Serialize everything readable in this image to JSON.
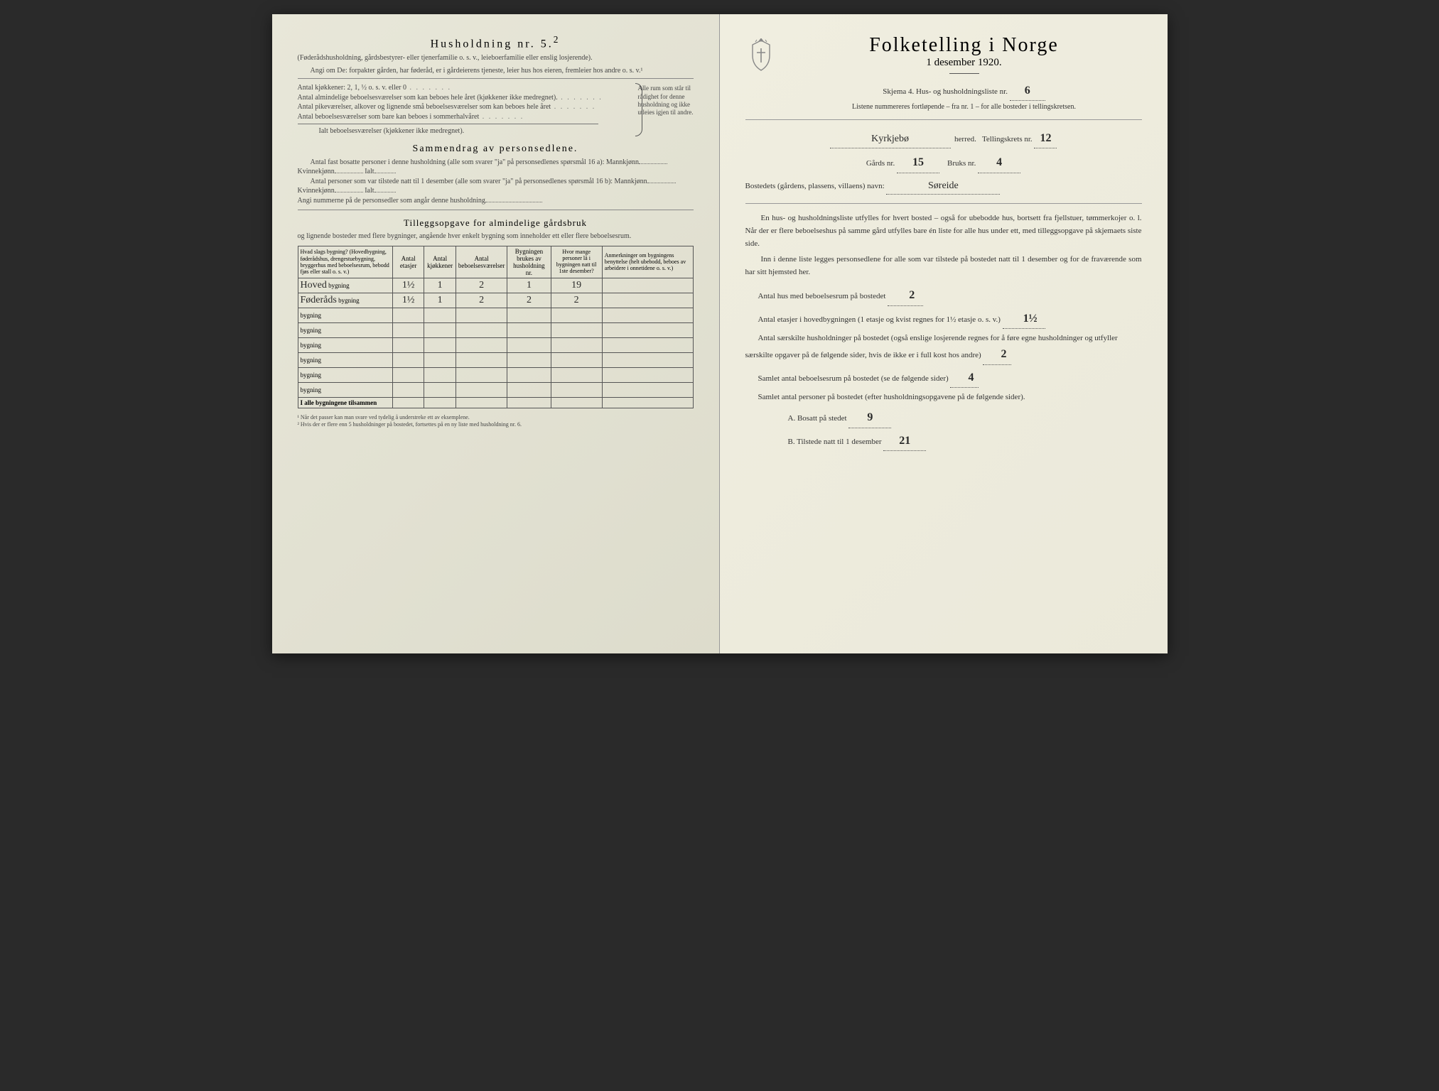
{
  "left": {
    "title": "Husholdning  nr.  5.",
    "title_sup": "2",
    "intro1": "(Føderådshusholdning, gårdsbestyrer- eller tjenerfamilie o. s. v., leieboerfamilie eller enslig losjerende).",
    "intro2": "Angi om De:  forpakter gården, har føderåd, er i gårdeierens tjeneste, leier hus hos eieren, fremleier hos andre o. s. v.¹",
    "kjokkener": "Antal kjøkkener: 2, 1, ½ o. s. v. eller 0",
    "alm": "Antal almindelige beboelsesværelser som kan beboes hele året (kjøkkener ikke medregnet).",
    "pike": "Antal pikeværelser, alkover og lignende små beboelsesværelser som kan beboes hele året",
    "sommer": "Antal beboelsesværelser som bare kan beboes i sommerhalvåret",
    "ialt": "Ialt beboelsesværelser (kjøkkener ikke medregnet).",
    "side_note": "Alle rum som står til rådighet for denne husholdning og ikke utleies igjen til andre.",
    "sammendrag_title": "Sammendrag  av  personsedlene.",
    "sam_l1": "Antal fast bosatte personer i denne husholdning (alle som svarer \"ja\" på personsedlenes spørsmål 16 a):  Mannkjønn",
    "sam_kv": "Kvinnekjønn",
    "sam_ialt": "Ialt",
    "sam_l2": "Antal personer som var tilstede natt til 1 desember (alle som svarer \"ja\" på personsedlenes spørsmål 16 b):  Mannkjønn",
    "sam_nr": "Angi nummerne på de personsedler som angår denne husholdning",
    "tillegg_title": "Tilleggsopgave for almindelige gårdsbruk",
    "tillegg_sub": "og lignende bosteder med flere bygninger, angående hver enkelt bygning som inneholder ett eller flere beboelsesrum.",
    "table": {
      "headers": [
        "Hvad slags bygning?\n(Hovedbygning, føderådshus, drengestuebygning, bryggerhus med beboelsesrum, bebodd fjøs eller stall o. s. v.)",
        "Antal etasjer",
        "Antal kjøkkener",
        "Antal beboelsesværelser",
        "Bygningen brukes av husholdning nr.",
        "Hvor mange personer lå i bygningen natt til 1ste desember?",
        "Anmerkninger om bygningens benyttelse (helt ubebodd, beboes av arbeidere i onnetidene o. s. v.)"
      ],
      "row_label_suffix": "bygning",
      "rows": [
        {
          "name": "Hoved",
          "etasjer": "1½",
          "kjokk": "1",
          "bebo": "2",
          "hush": "1",
          "pers": "19",
          "anm": ""
        },
        {
          "name": "Føderåds",
          "etasjer": "1½",
          "kjokk": "1",
          "bebo": "2",
          "hush": "2",
          "pers": "2",
          "anm": ""
        },
        {
          "name": "",
          "etasjer": "",
          "kjokk": "",
          "bebo": "",
          "hush": "",
          "pers": "",
          "anm": ""
        },
        {
          "name": "",
          "etasjer": "",
          "kjokk": "",
          "bebo": "",
          "hush": "",
          "pers": "",
          "anm": ""
        },
        {
          "name": "",
          "etasjer": "",
          "kjokk": "",
          "bebo": "",
          "hush": "",
          "pers": "",
          "anm": ""
        },
        {
          "name": "",
          "etasjer": "",
          "kjokk": "",
          "bebo": "",
          "hush": "",
          "pers": "",
          "anm": ""
        },
        {
          "name": "",
          "etasjer": "",
          "kjokk": "",
          "bebo": "",
          "hush": "",
          "pers": "",
          "anm": ""
        },
        {
          "name": "",
          "etasjer": "",
          "kjokk": "",
          "bebo": "",
          "hush": "",
          "pers": "",
          "anm": ""
        }
      ],
      "footer": "I alle bygningene tilsammen"
    },
    "footnotes": [
      "¹  Når det passer kan man svare ved tydelig å understreke ett av eksemplene.",
      "²  Hvis der er flere enn 5 husholdninger på bostedet, fortsettes på en ny liste med husholdning nr. 6."
    ]
  },
  "right": {
    "title": "Folketelling  i  Norge",
    "subtitle": "1 desember 1920.",
    "skjema": "Skjema 4.  Hus- og husholdningsliste nr.",
    "skjema_nr": "6",
    "list_note": "Listene nummereres fortløpende – fra nr. 1 – for alle bosteder i tellingskretsen.",
    "herred_value": "Kyrkjebø",
    "herred_label": "herred.",
    "tkrets_label": "Tellingskrets nr.",
    "tkrets_value": "12",
    "gards_label": "Gårds nr.",
    "gards_value": "15",
    "bruks_label": "Bruks nr.",
    "bruks_value": "4",
    "bosted_label": "Bostedets (gårdens, plassens, villaens) navn:",
    "bosted_value": "Søreide",
    "p1": "En hus- og husholdningsliste utfylles for hvert bosted – også for ubebodde hus, bortsett fra fjellstuer, tømmerkojer o. l.  Når der er flere beboelseshus på samme gård utfylles bare én liste for alle hus under ett, med tilleggsopgave på skjemaets siste side.",
    "p2": "Inn i denne liste legges personsedlene for alle som var tilstede på bostedet natt til 1 desember og for de fraværende som har sitt hjemsted her.",
    "hus_label": "Antal hus med beboelsesrum på bostedet",
    "hus_value": "2",
    "etasjer_label_a": "Antal etasjer i hovedbygningen (1 etasje og kvist regnes for 1½ etasje o. s. v.)",
    "etasjer_value": "1½",
    "hush_label": "Antal særskilte husholdninger på bostedet (også enslige losjerende regnes for å føre egne husholdninger og utfyller særskilte opgaver på de følgende sider, hvis de ikke er i full kost hos andre)",
    "hush_value": "2",
    "bebo_label": "Samlet antal beboelsesrum på bostedet (se de følgende sider)",
    "bebo_value": "4",
    "pers_label": "Samlet antal personer på bostedet (efter husholdningsopgavene på de følgende sider).",
    "a_label": "A.  Bosatt på stedet",
    "a_value": "9",
    "b_label": "B.  Tilstede natt til 1 desember",
    "b_value": "21"
  }
}
